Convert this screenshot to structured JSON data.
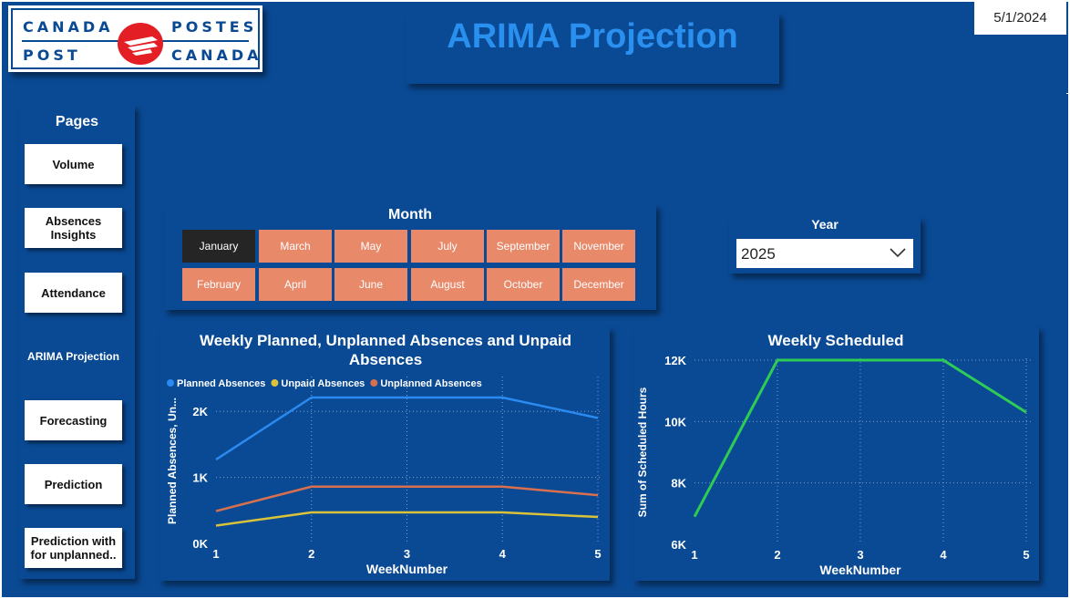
{
  "header": {
    "title": "ARIMA Projection",
    "date": "5/1/2024",
    "logo": {
      "top_left": "CANADA",
      "top_right": "POSTES",
      "bottom_left": "POST",
      "bottom_right": "CANADA"
    }
  },
  "pages_nav": {
    "title": "Pages",
    "items": [
      {
        "label": "Volume"
      },
      {
        "label": "Absences Insights"
      },
      {
        "label": "Attendance"
      },
      {
        "label": "ARIMA Projection",
        "active": true
      },
      {
        "label": "Forecasting"
      },
      {
        "label": "Prediction"
      },
      {
        "label": "Prediction with for unplanned.."
      }
    ]
  },
  "month_slicer": {
    "title": "Month",
    "selected": "January",
    "row1": [
      "January",
      "March",
      "May",
      "July",
      "September",
      "November"
    ],
    "row2": [
      "February",
      "April",
      "June",
      "August",
      "October",
      "December"
    ]
  },
  "year_slicer": {
    "title": "Year",
    "value": "2025"
  },
  "colors": {
    "background": "#0a4a94",
    "planned": "#2a8af0",
    "unpaid": "#d9c33b",
    "unplanned": "#d8704f",
    "scheduled": "#2ecc55",
    "month_button": "#e8896a",
    "month_selected": "#252525"
  },
  "chart_data": [
    {
      "type": "line",
      "title": "Weekly Planned, Unplanned Absences and Unpaid Absences",
      "xlabel": "WeekNumber",
      "ylabel": "Planned Absences, Un...",
      "x": [
        1,
        2,
        3,
        4,
        5
      ],
      "yticks": [
        "0K",
        "1K",
        "2K"
      ],
      "ylim": [
        0,
        2500
      ],
      "grid": true,
      "legend": "top-left",
      "series": [
        {
          "name": "Planned Absences",
          "values": [
            1270,
            2210,
            2210,
            2210,
            1900
          ]
        },
        {
          "name": "Unpaid Absences",
          "values": [
            270,
            470,
            470,
            470,
            400
          ]
        },
        {
          "name": "Unplanned Absences",
          "values": [
            490,
            860,
            860,
            860,
            730
          ]
        }
      ]
    },
    {
      "type": "line",
      "title": "Weekly Scheduled",
      "xlabel": "WeekNumber",
      "ylabel": "Sum of Scheduled Hours",
      "x": [
        1,
        2,
        3,
        4,
        5
      ],
      "yticks": [
        "6K",
        "8K",
        "10K",
        "12K"
      ],
      "ylim": [
        6000,
        12000
      ],
      "grid": true,
      "series": [
        {
          "values": [
            6900,
            12000,
            12000,
            12000,
            10300
          ]
        }
      ]
    }
  ]
}
